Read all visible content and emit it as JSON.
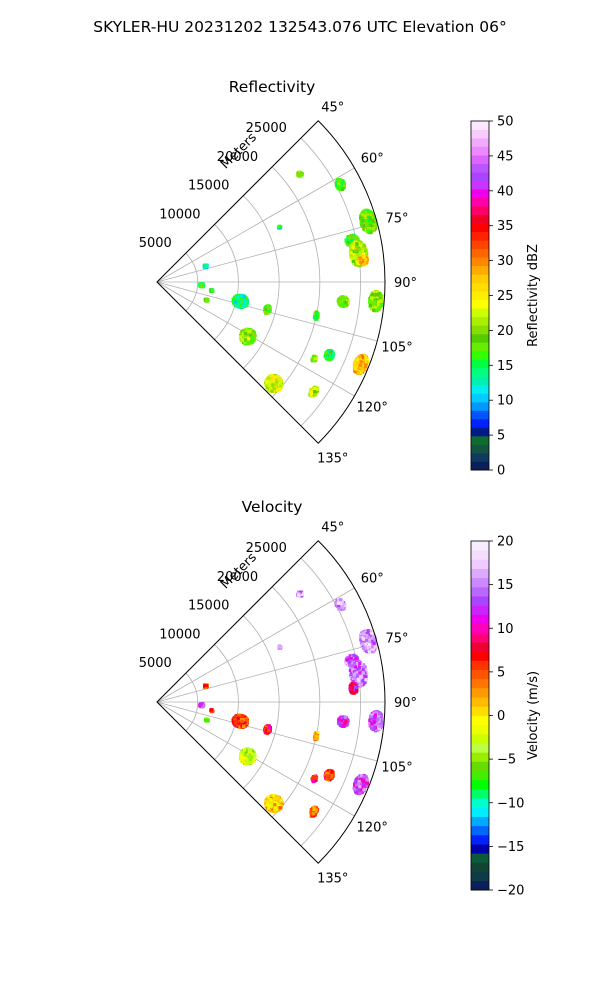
{
  "suptitle": "SKYLER-HU  20231202  132543.076 UTC Elevation 06°",
  "chart_data": [
    {
      "type": "heatmap",
      "projection": "polar-sector",
      "title": "Reflectivity",
      "radial_label": "Meters",
      "radial_ticks": [
        "5000",
        "10000",
        "15000",
        "20000",
        "25000"
      ],
      "radial_tick_values": [
        5000,
        10000,
        15000,
        20000,
        25000
      ],
      "radial_max": 28000,
      "theta_ticks": [
        "45°",
        "60°",
        "75°",
        "90°",
        "105°",
        "120°",
        "135°"
      ],
      "theta_tick_values": [
        45,
        60,
        75,
        90,
        105,
        120,
        135
      ],
      "theta_range": [
        45,
        135
      ],
      "grid": true,
      "colorbar": {
        "label": "Reflectivity dBZ",
        "ticks": [
          "0",
          "5",
          "10",
          "15",
          "20",
          "25",
          "30",
          "35",
          "40",
          "45",
          "50"
        ],
        "range": [
          0,
          50
        ],
        "colors": [
          "#0b1f5a",
          "#0e3a5e",
          "#12543f",
          "#0f6b30",
          "#001a8a",
          "#0022ff",
          "#0055ff",
          "#0099ff",
          "#00ccff",
          "#00eeee",
          "#00f0b0",
          "#00ff80",
          "#00ff40",
          "#33ff00",
          "#66ee00",
          "#55cc00",
          "#88dd00",
          "#aaee00",
          "#ccff00",
          "#ffff00",
          "#ffee00",
          "#ffdd00",
          "#ffcc00",
          "#ffaa00",
          "#ff8800",
          "#ff6600",
          "#ff4400",
          "#ff2200",
          "#ff0000",
          "#ee0022",
          "#ff0066",
          "#ff00aa",
          "#ee00ee",
          "#cc33ff",
          "#aa44ff",
          "#bb55ff",
          "#dd66ff",
          "#ee88ff",
          "#f0aaff",
          "#f8ccff",
          "#fbe8ff"
        ]
      },
      "echoes": [
        {
          "az": 53,
          "r": 22000,
          "dr": 600,
          "da": 1.5,
          "value": 18
        },
        {
          "az": 62,
          "r": 25500,
          "dr": 1000,
          "da": 3,
          "value": 18
        },
        {
          "az": 66,
          "r": 16500,
          "dr": 300,
          "da": 1,
          "value": 13
        },
        {
          "az": 74,
          "r": 27000,
          "dr": 1800,
          "da": 6,
          "value": 19
        },
        {
          "az": 78,
          "r": 24500,
          "dr": 1500,
          "da": 3,
          "value": 17
        },
        {
          "az": 82,
          "r": 25000,
          "dr": 2000,
          "da": 7,
          "value": 22
        },
        {
          "az": 84,
          "r": 25500,
          "dr": 1000,
          "da": 2.5,
          "value": 28
        },
        {
          "az": 95,
          "r": 27000,
          "dr": 1600,
          "da": 5,
          "value": 20
        },
        {
          "az": 96,
          "r": 23000,
          "dr": 1200,
          "da": 3,
          "value": 19
        },
        {
          "az": 103,
          "r": 10500,
          "dr": 1800,
          "da": 8,
          "value": 14
        },
        {
          "az": 104,
          "r": 14000,
          "dr": 700,
          "da": 4,
          "value": 19
        },
        {
          "az": 102,
          "r": 20000,
          "dr": 400,
          "da": 3,
          "value": 18
        },
        {
          "az": 113,
          "r": 23000,
          "dr": 1000,
          "da": 3,
          "value": 16
        },
        {
          "az": 112,
          "r": 27000,
          "dr": 1500,
          "da": 5,
          "value": 28
        },
        {
          "az": 116,
          "r": 21500,
          "dr": 500,
          "da": 2,
          "value": 20
        },
        {
          "az": 121,
          "r": 13000,
          "dr": 1800,
          "da": 8,
          "value": 20
        },
        {
          "az": 131,
          "r": 19000,
          "dr": 2000,
          "da": 6,
          "value": 23
        },
        {
          "az": 125,
          "r": 23500,
          "dr": 800,
          "da": 3,
          "value": 22
        },
        {
          "az": 94,
          "r": 5500,
          "dr": 500,
          "da": 4,
          "value": 15
        },
        {
          "az": 72,
          "r": 6300,
          "dr": 400,
          "da": 3,
          "value": 12
        },
        {
          "az": 99,
          "r": 6800,
          "dr": 300,
          "da": 2,
          "value": 16
        },
        {
          "az": 110,
          "r": 6500,
          "dr": 400,
          "da": 2,
          "value": 17
        }
      ]
    },
    {
      "type": "heatmap",
      "projection": "polar-sector",
      "title": "Velocity",
      "radial_label": "Meters",
      "radial_ticks": [
        "5000",
        "10000",
        "15000",
        "20000",
        "25000"
      ],
      "radial_tick_values": [
        5000,
        10000,
        15000,
        20000,
        25000
      ],
      "radial_max": 28000,
      "theta_ticks": [
        "45°",
        "60°",
        "75°",
        "90°",
        "105°",
        "120°",
        "135°"
      ],
      "theta_tick_values": [
        45,
        60,
        75,
        90,
        105,
        120,
        135
      ],
      "theta_range": [
        45,
        135
      ],
      "grid": true,
      "colorbar": {
        "label": "Velocity (m/s)",
        "ticks": [
          "−20",
          "−15",
          "−10",
          "−5",
          "0",
          "5",
          "10",
          "15",
          "20"
        ],
        "range": [
          -20,
          20
        ],
        "colors": [
          "#0b1f5a",
          "#0e3a4a",
          "#114433",
          "#0b5a3a",
          "#0000aa",
          "#0022ff",
          "#0066ff",
          "#00aaff",
          "#00eeff",
          "#00ffcc",
          "#00ff66",
          "#00ff00",
          "#44ee00",
          "#66dd00",
          "#99ee00",
          "#bbff44",
          "#ccff00",
          "#eeff00",
          "#ffff00",
          "#ffdd00",
          "#ffbb00",
          "#ff9900",
          "#ff7700",
          "#ff5500",
          "#ff3300",
          "#ff0000",
          "#ee0033",
          "#ff0077",
          "#ff00bb",
          "#ee00ee",
          "#cc22ff",
          "#aa44ff",
          "#bb66ff",
          "#cc88ff",
          "#ddaaff",
          "#eeccff",
          "#f4ddff",
          "#f8eaff"
        ]
      },
      "echoes": [
        {
          "az": 53,
          "r": 22000,
          "dr": 600,
          "da": 1.5,
          "value": 16
        },
        {
          "az": 62,
          "r": 25500,
          "dr": 1000,
          "da": 3,
          "value": 16
        },
        {
          "az": 66,
          "r": 16500,
          "dr": 300,
          "da": 1,
          "value": 14
        },
        {
          "az": 74,
          "r": 27000,
          "dr": 1800,
          "da": 6,
          "value": 16
        },
        {
          "az": 78,
          "r": 24500,
          "dr": 1500,
          "da": 3,
          "value": 14
        },
        {
          "az": 82,
          "r": 25000,
          "dr": 2000,
          "da": 7,
          "value": 15
        },
        {
          "az": 86,
          "r": 24200,
          "dr": 900,
          "da": 3,
          "value": 10
        },
        {
          "az": 95,
          "r": 27000,
          "dr": 1600,
          "da": 5,
          "value": 14
        },
        {
          "az": 96,
          "r": 23000,
          "dr": 1200,
          "da": 3,
          "value": 12
        },
        {
          "az": 103,
          "r": 10500,
          "dr": 1800,
          "da": 8,
          "value": 6
        },
        {
          "az": 104,
          "r": 14000,
          "dr": 700,
          "da": 4,
          "value": 7
        },
        {
          "az": 102,
          "r": 20000,
          "dr": 400,
          "da": 3,
          "value": 2
        },
        {
          "az": 113,
          "r": 23000,
          "dr": 1000,
          "da": 3,
          "value": 6
        },
        {
          "az": 112,
          "r": 27000,
          "dr": 1500,
          "da": 5,
          "value": 13
        },
        {
          "az": 116,
          "r": 21500,
          "dr": 500,
          "da": 2,
          "value": 7
        },
        {
          "az": 121,
          "r": 13000,
          "dr": 1800,
          "da": 8,
          "value": -3
        },
        {
          "az": 131,
          "r": 19000,
          "dr": 2000,
          "da": 6,
          "value": 1
        },
        {
          "az": 125,
          "r": 23500,
          "dr": 800,
          "da": 3,
          "value": 5
        },
        {
          "az": 94,
          "r": 5500,
          "dr": 500,
          "da": 4,
          "value": 12
        },
        {
          "az": 72,
          "r": 6300,
          "dr": 400,
          "da": 3,
          "value": 6
        },
        {
          "az": 99,
          "r": 6800,
          "dr": 300,
          "da": 2,
          "value": 7
        },
        {
          "az": 110,
          "r": 6500,
          "dr": 400,
          "da": 2,
          "value": -5
        }
      ]
    }
  ]
}
